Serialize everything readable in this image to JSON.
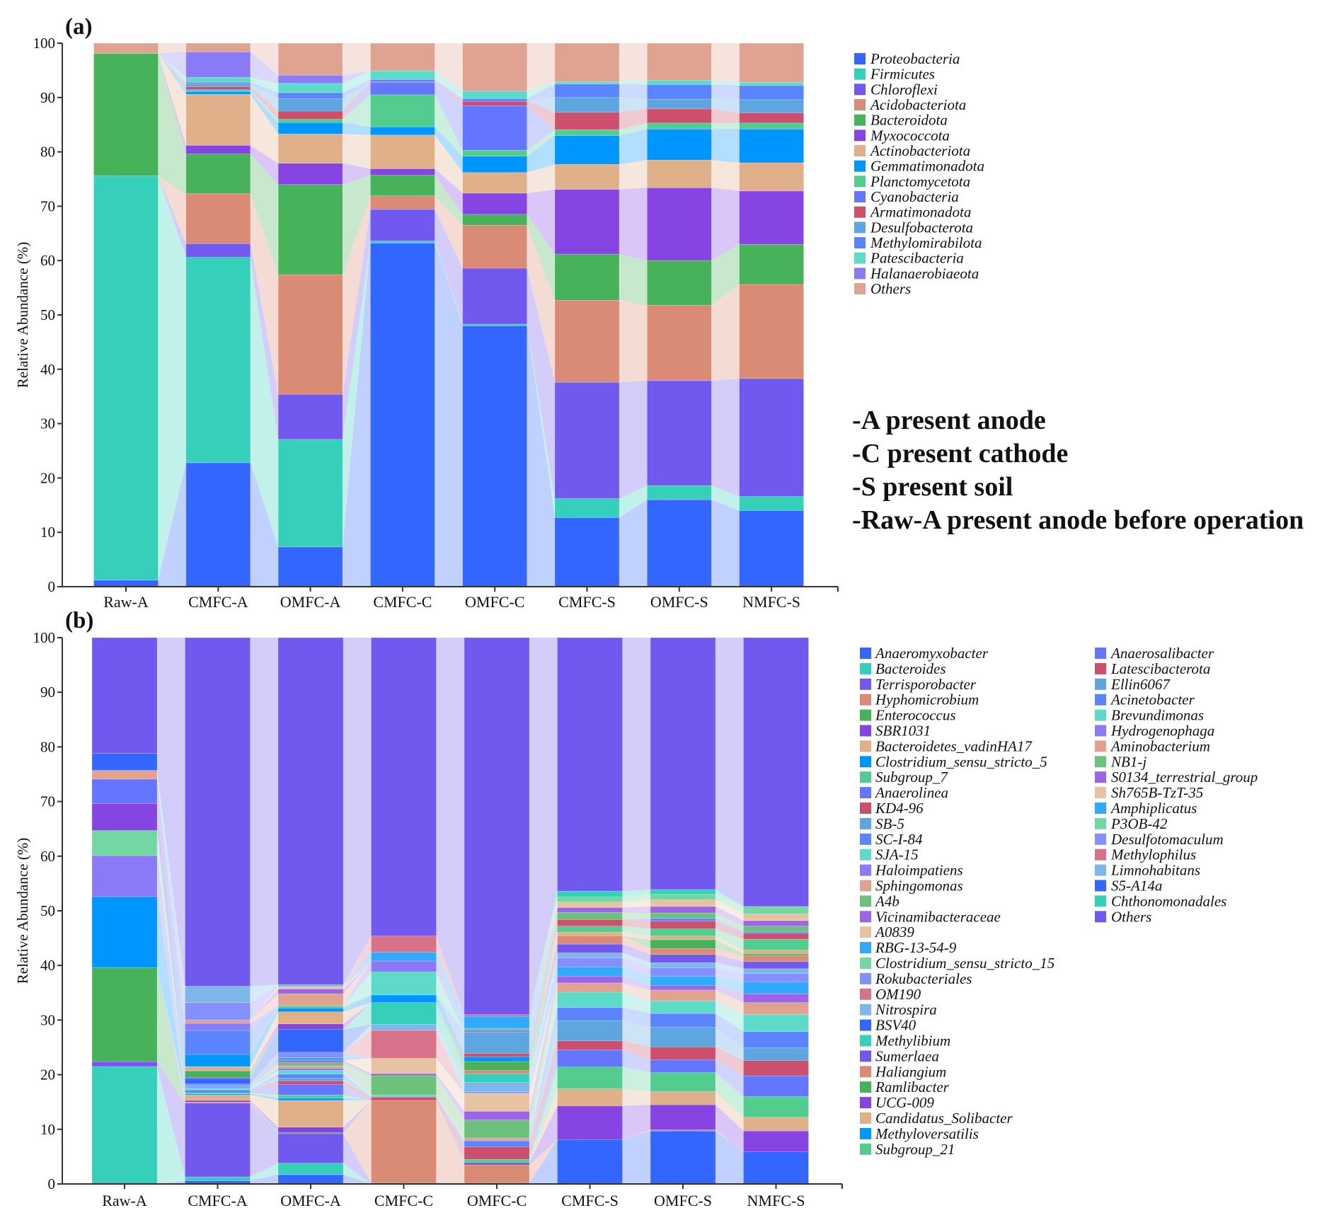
{
  "annotations": [
    "-A present anode",
    "-C present cathode",
    "-S present soil",
    "-Raw-A present anode before operation"
  ],
  "chart_data": [
    {
      "panel_label": "(a)",
      "type": "bar",
      "stacked": true,
      "flow_links": true,
      "title": "",
      "xlabel": "",
      "ylabel": "Relative Abundance (%)",
      "ylim": [
        0,
        100
      ],
      "yticks": [
        0,
        10,
        20,
        30,
        40,
        50,
        60,
        70,
        80,
        90,
        100
      ],
      "grid": false,
      "legend_position": "right",
      "categories": [
        "Raw-A",
        "CMFC-A",
        "OMFC-A",
        "CMFC-C",
        "OMFC-C",
        "CMFC-S",
        "OMFC-S",
        "NMFC-S"
      ],
      "series": [
        {
          "name": "Proteobacteria",
          "color": "#3366FF",
          "values": [
            1.2,
            22.8,
            7.3,
            63.2,
            48.0,
            12.7,
            16.0,
            14.0
          ]
        },
        {
          "name": "Firmicutes",
          "color": "#36CFB9",
          "values": [
            74.4,
            37.8,
            19.8,
            0.4,
            0.3,
            3.5,
            2.6,
            2.6
          ]
        },
        {
          "name": "Chloroflexi",
          "color": "#7158EE",
          "values": [
            0.0,
            2.5,
            8.3,
            5.8,
            10.3,
            21.4,
            19.3,
            21.7
          ]
        },
        {
          "name": "Acidobacteriota",
          "color": "#D98B75",
          "values": [
            0.0,
            9.2,
            22.0,
            2.5,
            7.9,
            15.1,
            13.9,
            17.3
          ]
        },
        {
          "name": "Bacteroidota",
          "color": "#47B25A",
          "values": [
            22.5,
            7.3,
            16.6,
            3.8,
            2.0,
            8.5,
            8.2,
            7.4
          ]
        },
        {
          "name": "Myxococcota",
          "color": "#8644E3",
          "values": [
            0.0,
            1.6,
            3.9,
            1.2,
            3.9,
            11.9,
            13.4,
            9.8
          ]
        },
        {
          "name": "Actinobacteriota",
          "color": "#E0B08B",
          "values": [
            0.0,
            9.4,
            5.4,
            6.2,
            3.8,
            4.6,
            5.1,
            5.2
          ]
        },
        {
          "name": "Gemmatimonadota",
          "color": "#0096FF",
          "values": [
            0.0,
            0.5,
            2.1,
            1.5,
            3.0,
            5.3,
            5.7,
            6.2
          ]
        },
        {
          "name": "Planctomycetota",
          "color": "#52CC8F",
          "values": [
            0.0,
            0.2,
            0.6,
            5.9,
            1.1,
            1.1,
            1.1,
            1.1
          ]
        },
        {
          "name": "Cyanobacteria",
          "color": "#6475FF",
          "values": [
            0.0,
            0.2,
            0.0,
            2.3,
            8.2,
            0.0,
            0.0,
            0.0
          ]
        },
        {
          "name": "Armatimonadota",
          "color": "#CC4F6D",
          "values": [
            0.0,
            0.5,
            1.5,
            0.1,
            0.8,
            3.2,
            2.6,
            1.9
          ]
        },
        {
          "name": "Desulfobacterota",
          "color": "#5DA6E0",
          "values": [
            0.0,
            0.5,
            2.3,
            0.0,
            0.0,
            2.7,
            1.8,
            2.4
          ]
        },
        {
          "name": "Methylomirabilota",
          "color": "#5B84FF",
          "values": [
            0.0,
            0.3,
            1.1,
            0.4,
            0.5,
            2.5,
            2.7,
            2.6
          ]
        },
        {
          "name": "Patescibacteria",
          "color": "#5EDAC8",
          "values": [
            0.0,
            0.9,
            1.7,
            1.6,
            1.4,
            0.4,
            0.8,
            0.6
          ]
        },
        {
          "name": "Halanaerobiaeota",
          "color": "#8B7AF5",
          "values": [
            0.0,
            4.7,
            1.5,
            0.0,
            0.0,
            0.0,
            0.0,
            0.0
          ]
        },
        {
          "name": "Others",
          "color": "#E0A392",
          "values": [
            1.9,
            1.6,
            5.9,
            5.1,
            8.8,
            7.1,
            6.8,
            7.2
          ]
        }
      ]
    },
    {
      "panel_label": "(b)",
      "type": "bar",
      "stacked": true,
      "flow_links": true,
      "title": "",
      "xlabel": "",
      "ylabel": "Relative Abundance (%)",
      "ylim": [
        0,
        100
      ],
      "yticks": [
        0,
        10,
        20,
        30,
        40,
        50,
        60,
        70,
        80,
        90,
        100
      ],
      "grid": false,
      "legend_position": "right",
      "categories": [
        "Raw-A",
        "CMFC-A",
        "OMFC-A",
        "CMFC-C",
        "OMFC-C",
        "CMFC-S",
        "OMFC-S",
        "NMFC-S"
      ],
      "series": [
        {
          "name": "Anaeromyxobacter",
          "color": "#3366FF",
          "values": [
            0,
            0.6,
            1.7,
            0,
            0,
            8.1,
            9.7,
            5.9
          ]
        },
        {
          "name": "Bacteroides",
          "color": "#36CFB9",
          "values": [
            21.5,
            0.7,
            2.1,
            0,
            0,
            0,
            0,
            0
          ]
        },
        {
          "name": "Terrisporobacter",
          "color": "#7158EE",
          "values": [
            0.9,
            13.5,
            5.4,
            0.2,
            0.2,
            0,
            0,
            0
          ]
        },
        {
          "name": "Hyphomicrobium",
          "color": "#D98B75",
          "values": [
            0,
            0.2,
            0,
            15.1,
            3.3,
            0,
            0.2,
            0
          ]
        },
        {
          "name": "Enterococcus",
          "color": "#47B25A",
          "values": [
            17.2,
            0,
            0.2,
            0,
            0,
            0,
            0,
            0
          ]
        },
        {
          "name": "SBR1031",
          "color": "#8644E3",
          "values": [
            0,
            0.3,
            1.0,
            0,
            0.4,
            6.2,
            4.6,
            3.8
          ]
        },
        {
          "name": "Bacteroidetes_vadinHA17",
          "color": "#E0B08B",
          "values": [
            0,
            1.0,
            4.9,
            0,
            0,
            3.1,
            2.4,
            2.5
          ]
        },
        {
          "name": "Clostridium_sensu_stricto_5",
          "color": "#0096FF",
          "values": [
            13.0,
            0.2,
            0.4,
            0,
            0,
            0,
            0,
            0
          ]
        },
        {
          "name": "Subgroup_7",
          "color": "#52CC8F",
          "values": [
            0,
            0.2,
            0.6,
            0,
            0.6,
            4.0,
            3.5,
            3.8
          ]
        },
        {
          "name": "Anaerolinea",
          "color": "#6475FF",
          "values": [
            0,
            0.4,
            1.9,
            0,
            0,
            3.1,
            2.3,
            3.8
          ]
        },
        {
          "name": "KD4-96",
          "color": "#CC4F6D",
          "values": [
            0,
            0,
            0.7,
            0.6,
            2.3,
            1.7,
            2.4,
            2.8
          ]
        },
        {
          "name": "SB-5",
          "color": "#5DA6E0",
          "values": [
            0,
            0.2,
            0.5,
            0,
            0,
            3.7,
            3.6,
            2.3
          ]
        },
        {
          "name": "SC-I-84",
          "color": "#5B84FF",
          "values": [
            0,
            0,
            0.7,
            0,
            1.1,
            2.4,
            2.5,
            3.0
          ]
        },
        {
          "name": "SJA-15",
          "color": "#5EDAC8",
          "values": [
            0,
            0.3,
            0.7,
            0.4,
            0,
            2.8,
            2.3,
            3.1
          ]
        },
        {
          "name": "Haloimpatiens",
          "color": "#8B7AF5",
          "values": [
            7.5,
            0.2,
            0.4,
            0,
            0,
            0,
            0,
            0
          ]
        },
        {
          "name": "Sphingomonas",
          "color": "#E0A392",
          "values": [
            0,
            0,
            0.4,
            0,
            0.5,
            1.7,
            2.0,
            2.2
          ]
        },
        {
          "name": "A4b",
          "color": "#6CC27D",
          "values": [
            0,
            0,
            0.6,
            3.5,
            3.3,
            0,
            0,
            0
          ]
        },
        {
          "name": "Vicinamibacteraceae",
          "color": "#9B65E6",
          "values": [
            0,
            0,
            0.4,
            0.4,
            1.6,
            1.2,
            0.8,
            1.6
          ]
        },
        {
          "name": "A0839",
          "color": "#E6C3A3",
          "values": [
            0,
            0,
            0,
            2.8,
            3.3,
            0,
            0,
            0
          ]
        },
        {
          "name": "RBG-13-54-9",
          "color": "#33A8FF",
          "values": [
            0,
            0.2,
            0.5,
            0,
            0,
            1.7,
            1.7,
            2.2
          ]
        },
        {
          "name": "Clostridium_sensu_stricto_15",
          "color": "#73D6A3",
          "values": [
            4.6,
            0,
            0,
            0,
            0,
            0,
            0,
            0
          ]
        },
        {
          "name": "Rokubacteriales",
          "color": "#8590FF",
          "values": [
            0,
            0.3,
            1.0,
            0,
            0.3,
            1.7,
            1.6,
            1.5
          ]
        },
        {
          "name": "OM190",
          "color": "#D6738A",
          "values": [
            0,
            0,
            0,
            5.1,
            0,
            0,
            0,
            0
          ]
        },
        {
          "name": "Nitrospira",
          "color": "#7DB8E8",
          "values": [
            0,
            0,
            0,
            1.1,
            1.7,
            0.9,
            0.9,
            0.9
          ]
        },
        {
          "name": "BSV40",
          "color": "#3366FF",
          "values": [
            0,
            1.0,
            4.2,
            0,
            0,
            0,
            0,
            0
          ]
        },
        {
          "name": "Methylibium",
          "color": "#36CFB9",
          "values": [
            0,
            0,
            0,
            4.0,
            1.6,
            0,
            0,
            0
          ]
        },
        {
          "name": "Sumerlaea",
          "color": "#7158EE",
          "values": [
            0,
            0.2,
            0,
            0,
            0,
            1.6,
            1.5,
            1.3
          ]
        },
        {
          "name": "Haliangium",
          "color": "#D98B75",
          "values": [
            0,
            0,
            0,
            0,
            0.6,
            1.5,
            1.1,
            1.1
          ]
        },
        {
          "name": "Ramlibacter",
          "color": "#47B25A",
          "values": [
            0,
            1.2,
            0,
            0,
            1.6,
            0,
            1.6,
            0.3
          ]
        },
        {
          "name": "UCG-009",
          "color": "#8644E3",
          "values": [
            4.9,
            0,
            1.0,
            0,
            0,
            0,
            0,
            0
          ]
        },
        {
          "name": "Candidatus_Solibacter",
          "color": "#E0B08B",
          "values": [
            0,
            0.8,
            2.2,
            0,
            0,
            0.7,
            0.7,
            0.7
          ]
        },
        {
          "name": "Methyloversatilis",
          "color": "#0096FF",
          "values": [
            0,
            2.2,
            0.7,
            1.4,
            0.9,
            0,
            0,
            0
          ]
        },
        {
          "name": "Subgroup_21",
          "color": "#52CC8F",
          "values": [
            0,
            0,
            0.4,
            0,
            0,
            1.1,
            1.3,
            2.0
          ]
        },
        {
          "name": "Anaerosalibacter",
          "color": "#6475FF",
          "values": [
            4.5,
            0,
            0,
            0,
            0,
            0,
            0,
            0
          ]
        },
        {
          "name": "Latescibacterota",
          "color": "#CC4F6D",
          "values": [
            0,
            0,
            0,
            0,
            0.6,
            1.2,
            1.4,
            1.1
          ]
        },
        {
          "name": "Ellin6067",
          "color": "#5DA6E0",
          "values": [
            0,
            0,
            0,
            0,
            3.9,
            0,
            0,
            0
          ]
        },
        {
          "name": "Acinetobacter",
          "color": "#5B84FF",
          "values": [
            0,
            4.4,
            0,
            0,
            0,
            0,
            0.5,
            0.3
          ]
        },
        {
          "name": "Brevundimonas",
          "color": "#5EDAC8",
          "values": [
            0,
            0,
            0,
            4.2,
            0,
            0,
            0,
            0
          ]
        },
        {
          "name": "Hydrogenophaga",
          "color": "#8B7AF5",
          "values": [
            0,
            1.3,
            0,
            2.0,
            0.4,
            0,
            0,
            0
          ]
        },
        {
          "name": "Aminobacterium",
          "color": "#E0A392",
          "values": [
            1.6,
            0.6,
            2.2,
            0,
            0,
            0,
            0,
            0
          ]
        },
        {
          "name": "NB1-j",
          "color": "#6CC27D",
          "values": [
            0,
            0,
            0,
            0,
            0.3,
            1.3,
            1.0,
            1.0
          ]
        },
        {
          "name": "S0134_terrestrial_group",
          "color": "#9B65E6",
          "values": [
            0,
            0,
            0.9,
            0,
            0,
            0.9,
            1.2,
            1.0
          ]
        },
        {
          "name": "Sh765B-TzT-35",
          "color": "#E6C3A3",
          "values": [
            0,
            0,
            0.4,
            0,
            0,
            1.0,
            1.2,
            1.2
          ]
        },
        {
          "name": "Amphiplicatus",
          "color": "#33A8FF",
          "values": [
            0,
            0,
            0,
            1.6,
            2.2,
            0,
            0,
            0
          ]
        },
        {
          "name": "P3OB-42",
          "color": "#73D6A3",
          "values": [
            0,
            0,
            0,
            0,
            0,
            0.9,
            1.0,
            1.4
          ]
        },
        {
          "name": "Desulfotomaculum",
          "color": "#8590FF",
          "values": [
            0,
            3.2,
            0,
            0,
            0,
            0,
            0,
            0
          ]
        },
        {
          "name": "Methylophilus",
          "color": "#D6738A",
          "values": [
            0,
            0,
            0,
            3.0,
            0.3,
            0,
            0,
            0
          ]
        },
        {
          "name": "Limnohabitans",
          "color": "#7DB8E8",
          "values": [
            0,
            3.0,
            0.4,
            0,
            0,
            0,
            0,
            0
          ]
        },
        {
          "name": "S5-A14a",
          "color": "#3366FF",
          "values": [
            3.1,
            0,
            0,
            0,
            0,
            0,
            0,
            0
          ]
        },
        {
          "name": "Chthonomonadales",
          "color": "#36CFB9",
          "values": [
            0,
            0,
            0,
            0,
            0,
            1.1,
            0.9,
            0
          ]
        },
        {
          "name": "Others",
          "color": "#7158EE",
          "values": [
            21.2,
            63.8,
            63.5,
            54.6,
            69.0,
            46.4,
            46.1,
            49.2
          ]
        }
      ]
    }
  ]
}
